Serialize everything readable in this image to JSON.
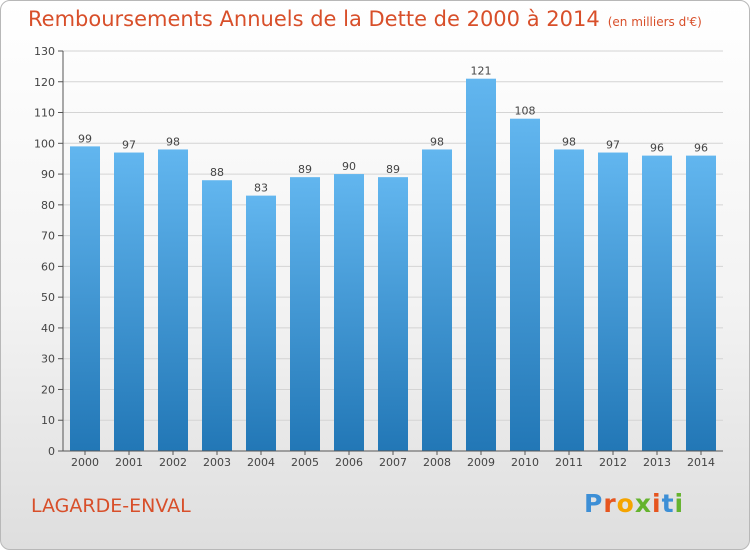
{
  "header": {
    "title": "Remboursements Annuels de la Dette de 2000 à 2014",
    "unit": "(en milliers d'€)"
  },
  "footer": {
    "commune": "LAGARDE-ENVAL",
    "logo_text": "Proxiti"
  },
  "colors": {
    "title": "#d84f2a",
    "bar_top": "#62b6ef",
    "bar_bottom": "#2277b6",
    "grid": "#d4d4d4",
    "logo": [
      "#3d8fd6",
      "#e6551f",
      "#f5a400",
      "#65b32e",
      "#e6551f",
      "#3d8fd6",
      "#65b32e"
    ]
  },
  "chart_data": {
    "type": "bar",
    "title": "Remboursements Annuels de la Dette de 2000 à 2014",
    "xlabel": "",
    "ylabel": "",
    "categories": [
      "2000",
      "2001",
      "2002",
      "2003",
      "2004",
      "2005",
      "2006",
      "2007",
      "2008",
      "2009",
      "2010",
      "2011",
      "2012",
      "2013",
      "2014"
    ],
    "values": [
      99,
      97,
      98,
      88,
      83,
      89,
      90,
      89,
      98,
      121,
      108,
      98,
      97,
      96,
      96
    ],
    "ylim": [
      0,
      130
    ],
    "yticks": [
      0,
      10,
      20,
      30,
      40,
      50,
      60,
      70,
      80,
      90,
      100,
      110,
      120,
      130
    ],
    "grid": true,
    "data_labels": true
  }
}
